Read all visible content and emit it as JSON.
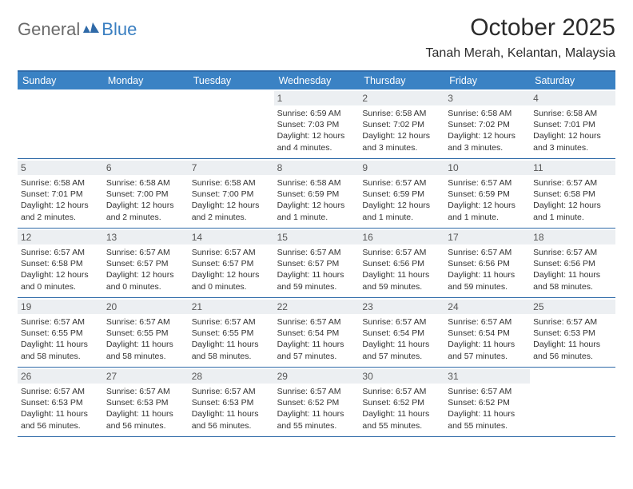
{
  "brand": {
    "part1": "General",
    "part2": "Blue",
    "part1_color": "#6a6a6a",
    "part2_color": "#3a7fc1",
    "icon_color": "#2f6aa8"
  },
  "title": "October 2025",
  "subtitle": "Tanah Merah, Kelantan, Malaysia",
  "colors": {
    "header_bg": "#3a82c4",
    "header_text": "#ffffff",
    "rule": "#2f6aa8",
    "daynum_bg": "#eceff2",
    "daynum_text": "#565656",
    "body_text": "#323232"
  },
  "fontsize": {
    "title": 30,
    "subtitle": 16,
    "dow": 12.5,
    "daynum": 12,
    "cell": 10.5
  },
  "days_of_week": [
    "Sunday",
    "Monday",
    "Tuesday",
    "Wednesday",
    "Thursday",
    "Friday",
    "Saturday"
  ],
  "weeks": [
    [
      null,
      null,
      null,
      {
        "d": "1",
        "sr": "6:59 AM",
        "ss": "7:03 PM",
        "dl": "12 hours and 4 minutes."
      },
      {
        "d": "2",
        "sr": "6:58 AM",
        "ss": "7:02 PM",
        "dl": "12 hours and 3 minutes."
      },
      {
        "d": "3",
        "sr": "6:58 AM",
        "ss": "7:02 PM",
        "dl": "12 hours and 3 minutes."
      },
      {
        "d": "4",
        "sr": "6:58 AM",
        "ss": "7:01 PM",
        "dl": "12 hours and 3 minutes."
      }
    ],
    [
      {
        "d": "5",
        "sr": "6:58 AM",
        "ss": "7:01 PM",
        "dl": "12 hours and 2 minutes."
      },
      {
        "d": "6",
        "sr": "6:58 AM",
        "ss": "7:00 PM",
        "dl": "12 hours and 2 minutes."
      },
      {
        "d": "7",
        "sr": "6:58 AM",
        "ss": "7:00 PM",
        "dl": "12 hours and 2 minutes."
      },
      {
        "d": "8",
        "sr": "6:58 AM",
        "ss": "6:59 PM",
        "dl": "12 hours and 1 minute."
      },
      {
        "d": "9",
        "sr": "6:57 AM",
        "ss": "6:59 PM",
        "dl": "12 hours and 1 minute."
      },
      {
        "d": "10",
        "sr": "6:57 AM",
        "ss": "6:59 PM",
        "dl": "12 hours and 1 minute."
      },
      {
        "d": "11",
        "sr": "6:57 AM",
        "ss": "6:58 PM",
        "dl": "12 hours and 1 minute."
      }
    ],
    [
      {
        "d": "12",
        "sr": "6:57 AM",
        "ss": "6:58 PM",
        "dl": "12 hours and 0 minutes."
      },
      {
        "d": "13",
        "sr": "6:57 AM",
        "ss": "6:57 PM",
        "dl": "12 hours and 0 minutes."
      },
      {
        "d": "14",
        "sr": "6:57 AM",
        "ss": "6:57 PM",
        "dl": "12 hours and 0 minutes."
      },
      {
        "d": "15",
        "sr": "6:57 AM",
        "ss": "6:57 PM",
        "dl": "11 hours and 59 minutes."
      },
      {
        "d": "16",
        "sr": "6:57 AM",
        "ss": "6:56 PM",
        "dl": "11 hours and 59 minutes."
      },
      {
        "d": "17",
        "sr": "6:57 AM",
        "ss": "6:56 PM",
        "dl": "11 hours and 59 minutes."
      },
      {
        "d": "18",
        "sr": "6:57 AM",
        "ss": "6:56 PM",
        "dl": "11 hours and 58 minutes."
      }
    ],
    [
      {
        "d": "19",
        "sr": "6:57 AM",
        "ss": "6:55 PM",
        "dl": "11 hours and 58 minutes."
      },
      {
        "d": "20",
        "sr": "6:57 AM",
        "ss": "6:55 PM",
        "dl": "11 hours and 58 minutes."
      },
      {
        "d": "21",
        "sr": "6:57 AM",
        "ss": "6:55 PM",
        "dl": "11 hours and 58 minutes."
      },
      {
        "d": "22",
        "sr": "6:57 AM",
        "ss": "6:54 PM",
        "dl": "11 hours and 57 minutes."
      },
      {
        "d": "23",
        "sr": "6:57 AM",
        "ss": "6:54 PM",
        "dl": "11 hours and 57 minutes."
      },
      {
        "d": "24",
        "sr": "6:57 AM",
        "ss": "6:54 PM",
        "dl": "11 hours and 57 minutes."
      },
      {
        "d": "25",
        "sr": "6:57 AM",
        "ss": "6:53 PM",
        "dl": "11 hours and 56 minutes."
      }
    ],
    [
      {
        "d": "26",
        "sr": "6:57 AM",
        "ss": "6:53 PM",
        "dl": "11 hours and 56 minutes."
      },
      {
        "d": "27",
        "sr": "6:57 AM",
        "ss": "6:53 PM",
        "dl": "11 hours and 56 minutes."
      },
      {
        "d": "28",
        "sr": "6:57 AM",
        "ss": "6:53 PM",
        "dl": "11 hours and 56 minutes."
      },
      {
        "d": "29",
        "sr": "6:57 AM",
        "ss": "6:52 PM",
        "dl": "11 hours and 55 minutes."
      },
      {
        "d": "30",
        "sr": "6:57 AM",
        "ss": "6:52 PM",
        "dl": "11 hours and 55 minutes."
      },
      {
        "d": "31",
        "sr": "6:57 AM",
        "ss": "6:52 PM",
        "dl": "11 hours and 55 minutes."
      },
      null
    ]
  ],
  "labels": {
    "sunrise": "Sunrise:",
    "sunset": "Sunset:",
    "daylight": "Daylight:"
  }
}
